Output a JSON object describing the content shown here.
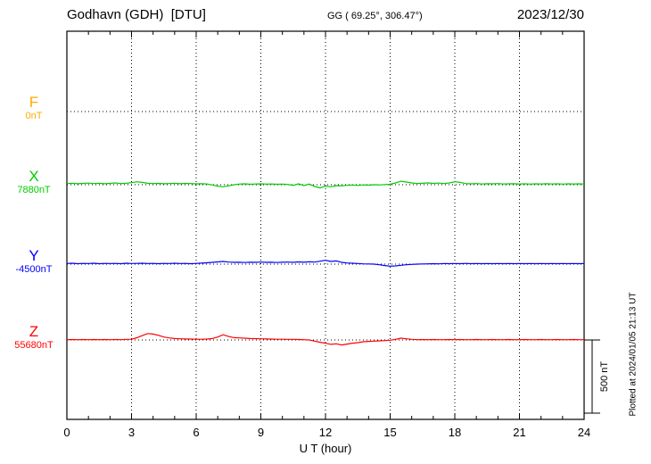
{
  "header": {
    "station": "Godhavn (GDH)  [DTU]",
    "coords": "GG ( 69.25°, 306.47°)",
    "date": "2023/12/30"
  },
  "axis": {
    "xlabel": "U T (hour)",
    "ticks": [
      "0",
      "3",
      "6",
      "9",
      "12",
      "15",
      "18",
      "21",
      "24"
    ]
  },
  "components": [
    {
      "label": "F",
      "baseline_label": "0nT",
      "color": "#ffaa00"
    },
    {
      "label": "X",
      "baseline_label": "7880nT",
      "color": "#00cc00"
    },
    {
      "label": "Y",
      "baseline_label": "-4500nT",
      "color": "#0000ff"
    },
    {
      "label": "Z",
      "baseline_label": "55680nT",
      "color": "#ff0000"
    }
  ],
  "scalebar": {
    "label": "500 nT",
    "nT": 500
  },
  "footer": {
    "plotted_at": "Plotted at 2024/01/05 21:13 UT"
  },
  "chart_data": {
    "type": "line",
    "title": "Godhavn (GDH) [DTU] magnetogram 2023/12/30",
    "xlabel": "U T (hour)",
    "x_range": [
      0,
      24
    ],
    "x_step": 0.25,
    "x_tick_labels": [
      "0",
      "3",
      "6",
      "9",
      "12",
      "15",
      "18",
      "21",
      "24"
    ],
    "grid": "dotted vertical every 3h, dotted horizontal baseline per component",
    "scale_bar_nT": 500,
    "series": [
      {
        "name": "F",
        "baseline_nT": 0,
        "color": "#ffaa00",
        "offsets_nT": []
      },
      {
        "name": "X",
        "baseline_nT": 7880,
        "color": "#00cc00",
        "offsets_nT": [
          8,
          10,
          7,
          9,
          11,
          8,
          10,
          7,
          9,
          12,
          8,
          10,
          14,
          20,
          16,
          10,
          8,
          9,
          7,
          8,
          10,
          7,
          9,
          8,
          6,
          7,
          5,
          -2,
          -10,
          -14,
          -8,
          0,
          4,
          6,
          3,
          5,
          6,
          4,
          5,
          3,
          4,
          2,
          -4,
          6,
          -6,
          4,
          -12,
          -22,
          -10,
          -14,
          -6,
          -8,
          -4,
          -2,
          -5,
          -1,
          -3,
          0,
          -2,
          1,
          3,
          12,
          24,
          18,
          12,
          8,
          10,
          12,
          9,
          11,
          8,
          12,
          20,
          16,
          8,
          6,
          8,
          5,
          7,
          6,
          8,
          5,
          6,
          7,
          5,
          6,
          4,
          6,
          5,
          7,
          5,
          6,
          4,
          6,
          5,
          6,
          5
        ]
      },
      {
        "name": "Y",
        "baseline_nT": -4500,
        "color": "#0000ff",
        "offsets_nT": [
          4,
          6,
          3,
          5,
          4,
          6,
          3,
          5,
          4,
          5,
          3,
          6,
          4,
          5,
          6,
          4,
          5,
          3,
          5,
          4,
          6,
          4,
          5,
          3,
          5,
          7,
          9,
          12,
          15,
          18,
          14,
          12,
          13,
          11,
          13,
          12,
          14,
          12,
          13,
          11,
          13,
          14,
          12,
          15,
          13,
          16,
          14,
          20,
          26,
          18,
          22,
          12,
          8,
          6,
          4,
          2,
          1,
          0,
          -4,
          -10,
          -14,
          -12,
          -8,
          -4,
          -2,
          0,
          1,
          2,
          3,
          2,
          4,
          3,
          4,
          3,
          5,
          3,
          4,
          3,
          4,
          3,
          4,
          3,
          4,
          3,
          4,
          3,
          4,
          3,
          4,
          3,
          4,
          3,
          4,
          3,
          4,
          3,
          4
        ]
      },
      {
        "name": "Z",
        "baseline_nT": 55680,
        "color": "#ff0000",
        "offsets_nT": [
          2,
          3,
          2,
          3,
          2,
          3,
          2,
          3,
          2,
          3,
          2,
          4,
          5,
          15,
          30,
          44,
          40,
          32,
          20,
          14,
          10,
          8,
          7,
          6,
          5,
          5,
          6,
          10,
          20,
          36,
          24,
          16,
          14,
          12,
          10,
          9,
          8,
          7,
          6,
          5,
          5,
          4,
          4,
          3,
          2,
          0,
          -8,
          -16,
          -22,
          -30,
          -26,
          -34,
          -28,
          -22,
          -18,
          -12,
          -10,
          -8,
          -6,
          -4,
          -2,
          4,
          12,
          8,
          4,
          2,
          3,
          2,
          3,
          2,
          2,
          3,
          2,
          3,
          2,
          2,
          3,
          2,
          2,
          3,
          2,
          2,
          3,
          2,
          2,
          3,
          2,
          2,
          3,
          2,
          2,
          3,
          2,
          2,
          3,
          2,
          2
        ]
      }
    ]
  }
}
